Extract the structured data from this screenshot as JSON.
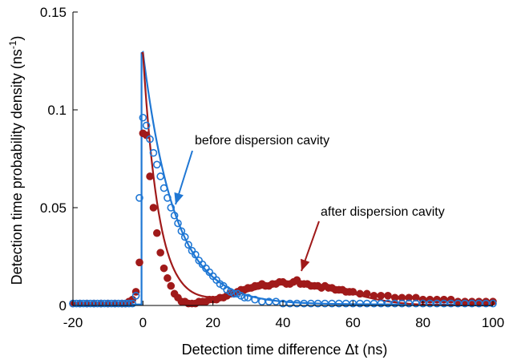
{
  "chart_data": {
    "type": "scatter",
    "xlabel": "Detection time difference Δt (ns)",
    "ylabel": "Detection time probability density (ns",
    "ylabel_sup": "-1",
    "ylabel_close": ")",
    "xlim": [
      -20,
      100
    ],
    "ylim": [
      0,
      0.15
    ],
    "xticks": [
      -20,
      0,
      20,
      40,
      60,
      80,
      100
    ],
    "xtick_labels": [
      "-20",
      "0",
      "20",
      "40",
      "60",
      "80",
      "100"
    ],
    "yticks": [
      0,
      0.05,
      0.1,
      0.15
    ],
    "ytick_labels": [
      "0",
      "0.05",
      "0.1",
      "0.15"
    ],
    "grid": false,
    "colors": {
      "before": "#1f77d4",
      "after": "#a01a1a"
    },
    "annotations": [
      {
        "text": "before dispersion cavity",
        "series": "before"
      },
      {
        "text": "after dispersion cavity",
        "series": "after"
      }
    ],
    "series": [
      {
        "marker": "open-circle",
        "color": "#1f77d4",
        "x": [
          -20,
          -19,
          -18,
          -17,
          -16,
          -15,
          -14,
          -13,
          -12,
          -11,
          -10,
          -9,
          -8,
          -7,
          -6,
          -5,
          -4,
          -3,
          -2,
          -1,
          0,
          1,
          2,
          3,
          4,
          5,
          6,
          7,
          8,
          9,
          10,
          11,
          12,
          13,
          14,
          15,
          16,
          17,
          18,
          19,
          20,
          21,
          22,
          23,
          24,
          25,
          26,
          27,
          28,
          29,
          30,
          32,
          34,
          36,
          38,
          40,
          42,
          44,
          46,
          48,
          50,
          52,
          54,
          56,
          58,
          60,
          62,
          64,
          66,
          68,
          70,
          72,
          74,
          76,
          78,
          80,
          82,
          84,
          86,
          88,
          90,
          92,
          94,
          96,
          98,
          100
        ],
        "y": [
          0.001,
          0.001,
          0.001,
          0.001,
          0.001,
          0.001,
          0.001,
          0.001,
          0.001,
          0.001,
          0.001,
          0.001,
          0.001,
          0.001,
          0.001,
          0.001,
          0.001,
          0.001,
          0.005,
          0.055,
          0.096,
          0.092,
          0.085,
          0.078,
          0.072,
          0.066,
          0.06,
          0.055,
          0.05,
          0.046,
          0.042,
          0.038,
          0.035,
          0.031,
          0.028,
          0.026,
          0.023,
          0.021,
          0.019,
          0.017,
          0.015,
          0.013,
          0.011,
          0.01,
          0.008,
          0.007,
          0.006,
          0.006,
          0.005,
          0.004,
          0.004,
          0.003,
          0.002,
          0.002,
          0.002,
          0.001,
          0.001,
          0.001,
          0.001,
          0.001,
          0.001,
          0.001,
          0.001,
          0.001,
          0.001,
          0.001,
          0.001,
          0.001,
          0.001,
          0.001,
          0.001,
          0.001,
          0.001,
          0.001,
          0.001,
          0.001,
          0.001,
          0.001,
          0.001,
          0.001,
          0.001,
          0.001,
          0.001,
          0.001,
          0.001,
          0.001
        ]
      },
      {
        "marker": "filled-circle",
        "color": "#a01a1a",
        "x": [
          -20,
          -18,
          -16,
          -14,
          -12,
          -10,
          -8,
          -6,
          -5,
          -4,
          -3,
          -2,
          -1,
          0,
          1,
          2,
          3,
          4,
          5,
          6,
          7,
          8,
          9,
          10,
          11,
          12,
          13,
          14,
          15,
          16,
          17,
          18,
          19,
          20,
          21,
          22,
          23,
          24,
          25,
          26,
          27,
          28,
          29,
          30,
          31,
          32,
          33,
          34,
          35,
          36,
          37,
          38,
          39,
          40,
          41,
          42,
          43,
          44,
          45,
          46,
          47,
          48,
          49,
          50,
          51,
          52,
          53,
          54,
          55,
          56,
          57,
          58,
          59,
          60,
          62,
          64,
          66,
          68,
          70,
          72,
          74,
          76,
          78,
          80,
          82,
          84,
          86,
          88,
          90,
          92,
          94,
          96,
          98,
          100
        ],
        "y": [
          0.001,
          0.001,
          0.001,
          0.001,
          0.001,
          0.001,
          0.001,
          0.001,
          0.001,
          0.002,
          0.003,
          0.007,
          0.022,
          0.088,
          0.087,
          0.066,
          0.05,
          0.037,
          0.027,
          0.019,
          0.014,
          0.01,
          0.006,
          0.004,
          0.002,
          0.002,
          0.001,
          0.001,
          0.001,
          0.002,
          0.002,
          0.002,
          0.003,
          0.003,
          0.003,
          0.004,
          0.004,
          0.005,
          0.006,
          0.006,
          0.007,
          0.008,
          0.008,
          0.009,
          0.009,
          0.01,
          0.01,
          0.011,
          0.01,
          0.01,
          0.011,
          0.011,
          0.012,
          0.012,
          0.011,
          0.011,
          0.012,
          0.013,
          0.011,
          0.011,
          0.011,
          0.01,
          0.01,
          0.01,
          0.009,
          0.01,
          0.009,
          0.009,
          0.008,
          0.008,
          0.008,
          0.007,
          0.007,
          0.007,
          0.006,
          0.006,
          0.005,
          0.005,
          0.005,
          0.004,
          0.004,
          0.004,
          0.004,
          0.003,
          0.003,
          0.003,
          0.003,
          0.003,
          0.002,
          0.002,
          0.002,
          0.002,
          0.002,
          0.002
        ]
      }
    ]
  }
}
